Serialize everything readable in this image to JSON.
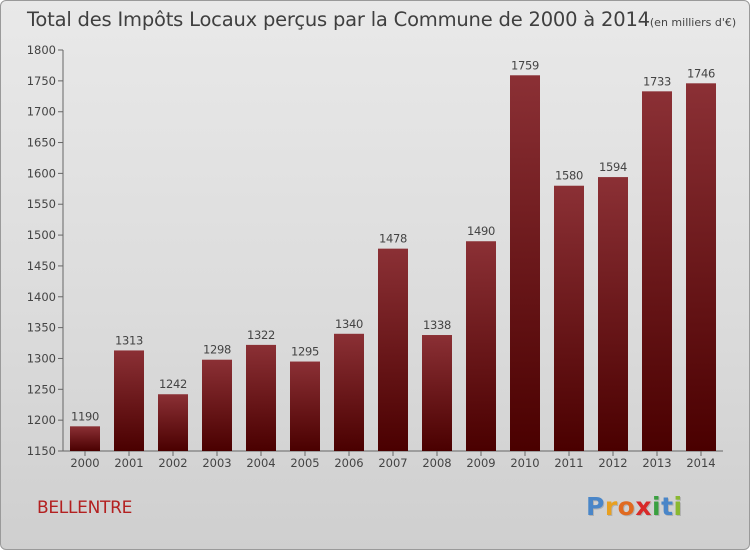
{
  "header": {
    "title": "Total des Impôts Locaux perçus par la Commune de 2000 à 2014",
    "unit_note": "(en milliers d'€)"
  },
  "footer": {
    "commune_name": "BELLENTRE",
    "logo_text": "Proxiti",
    "logo_letters": [
      {
        "char": "P",
        "color": "#4a86c8"
      },
      {
        "char": "r",
        "color": "#e8a020"
      },
      {
        "char": "o",
        "color": "#e06a20"
      },
      {
        "char": "x",
        "color": "#d82a2a"
      },
      {
        "char": "i",
        "color": "#3aa040"
      },
      {
        "char": "t",
        "color": "#4a86c8"
      },
      {
        "char": "i",
        "color": "#8ab830"
      }
    ]
  },
  "chart_data": {
    "type": "bar",
    "title": "Total des Impôts Locaux perçus par la Commune de 2000 à 2014",
    "xlabel": "",
    "ylabel": "",
    "categories": [
      "2000",
      "2001",
      "2002",
      "2003",
      "2004",
      "2005",
      "2006",
      "2007",
      "2008",
      "2009",
      "2010",
      "2011",
      "2012",
      "2013",
      "2014"
    ],
    "values": [
      1190,
      1313,
      1242,
      1298,
      1322,
      1295,
      1340,
      1478,
      1338,
      1490,
      1759,
      1580,
      1594,
      1733,
      1746
    ],
    "ylim": [
      1150,
      1800
    ],
    "yticks": [
      1150,
      1200,
      1250,
      1300,
      1350,
      1400,
      1450,
      1500,
      1550,
      1600,
      1650,
      1700,
      1750,
      1800
    ],
    "grid": false,
    "legend": "none",
    "colors": {
      "bar_top": "#8b3035",
      "bar_bottom": "#4a0000",
      "axis": "#666666",
      "text": "#444444"
    }
  }
}
